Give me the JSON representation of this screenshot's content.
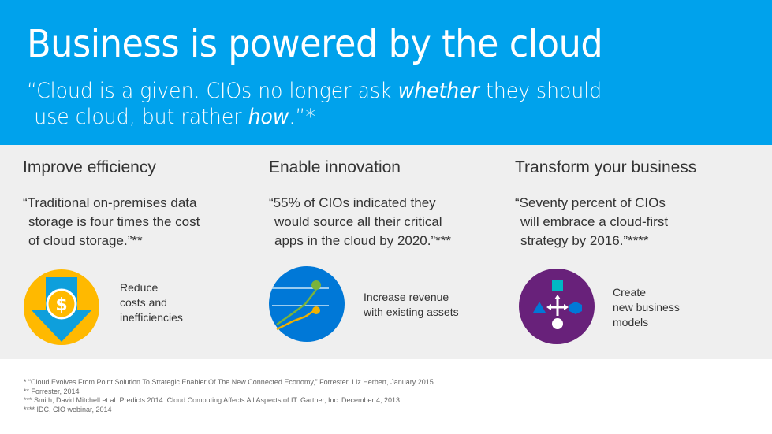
{
  "header": {
    "title": "Business is powered by the cloud",
    "quote_part1": "“Cloud is a given. CIOs no longer ask ",
    "quote_em1": "whether",
    "quote_part2": " they should",
    "quote_line2_part1": "use cloud, but rather ",
    "quote_em2": "how",
    "quote_line2_part2": ".”*"
  },
  "columns": [
    {
      "heading": "Improve efficiency",
      "quote_lines": [
        "“Traditional on-premises data",
        "storage is four times the cost",
        "of cloud storage.”**"
      ],
      "icon": "dollar-down-arrow-icon",
      "benefit_lines": [
        "Reduce",
        "costs and",
        "inefficiencies"
      ]
    },
    {
      "heading": "Enable innovation",
      "quote_lines": [
        "“55% of CIOs indicated they",
        "would source all their critical",
        "apps in the cloud by 2020.”***"
      ],
      "icon": "growth-chart-icon",
      "benefit_lines": [
        "Increase revenue",
        "with existing assets"
      ]
    },
    {
      "heading": "Transform your business",
      "quote_lines": [
        "“Seventy percent of CIOs",
        "will embrace a cloud-first",
        "strategy by 2016.”****"
      ],
      "icon": "shapes-transform-icon",
      "benefit_lines": [
        "Create",
        "new business",
        "models"
      ]
    }
  ],
  "footnotes": [
    "* “Cloud Evolves From Point Solution To Strategic Enabler Of The New Connected Economy,” Forrester, Liz Herbert, January 2015",
    "** Forrester, 2014",
    "*** Smith, David Mitchell et al. Predicts 2014: Cloud Computing Affects All Aspects of IT. Gartner, Inc. December 4, 2013.",
    "**** IDC, CIO webinar, 2014"
  ],
  "colors": {
    "header_bg": "#00a2ec",
    "panel_bg": "#efefef",
    "efficiency_circle": "#ffb900",
    "innovation_circle": "#0078d7",
    "transform_circle": "#68217a"
  }
}
